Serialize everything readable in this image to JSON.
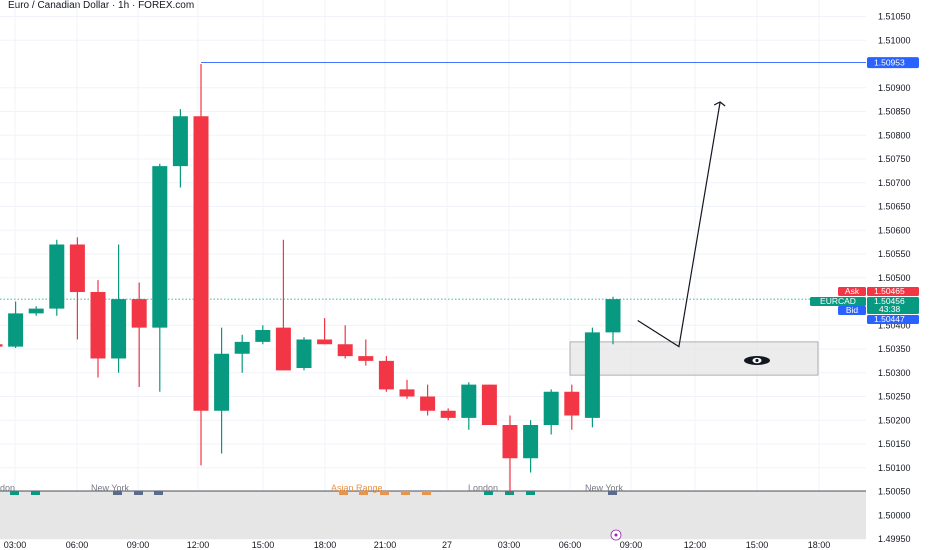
{
  "title": "Euro / Canadian Dollar · 1h · FOREX.com",
  "colors": {
    "up": "#089981",
    "down": "#f23645",
    "blue": "#2962ff",
    "grid": "#f0f3fa",
    "zone": "#e6e6e6",
    "session_grey": "#787b86",
    "session_orange": "#e8944a"
  },
  "chart_data": {
    "type": "candlestick",
    "symbol": "EURCAD",
    "y_ticks": [
      "1.51050",
      "1.51000",
      "1.50900",
      "1.50850",
      "1.50800",
      "1.50750",
      "1.50700",
      "1.50650",
      "1.50600",
      "1.50550",
      "1.50500",
      "1.50400",
      "1.50350",
      "1.50300",
      "1.50250",
      "1.50200",
      "1.50150",
      "1.50100",
      "1.50050",
      "1.50000",
      "1.49950"
    ],
    "y_range": [
      1.4995,
      1.5107
    ],
    "x_ticks": [
      "03:00",
      "06:00",
      "09:00",
      "12:00",
      "15:00",
      "18:00",
      "21:00",
      "27",
      "03:00",
      "06:00",
      "09:00",
      "12:00",
      "15:00",
      "18:00"
    ],
    "candles": [
      {
        "o": 1.5036,
        "h": 1.50365,
        "l": 1.50353,
        "c": 1.50355
      },
      {
        "o": 1.50355,
        "h": 1.5045,
        "l": 1.50352,
        "c": 1.50425
      },
      {
        "o": 1.50425,
        "h": 1.5044,
        "l": 1.5042,
        "c": 1.50435
      },
      {
        "o": 1.50435,
        "h": 1.5058,
        "l": 1.5042,
        "c": 1.5057
      },
      {
        "o": 1.5057,
        "h": 1.50585,
        "l": 1.5037,
        "c": 1.5047
      },
      {
        "o": 1.5047,
        "h": 1.50495,
        "l": 1.5029,
        "c": 1.5033
      },
      {
        "o": 1.5033,
        "h": 1.5057,
        "l": 1.503,
        "c": 1.50455
      },
      {
        "o": 1.50455,
        "h": 1.5049,
        "l": 1.5027,
        "c": 1.50395
      },
      {
        "o": 1.50395,
        "h": 1.5074,
        "l": 1.5026,
        "c": 1.50735
      },
      {
        "o": 1.50735,
        "h": 1.50855,
        "l": 1.5069,
        "c": 1.5084
      },
      {
        "o": 1.5084,
        "h": 1.5095,
        "l": 1.50105,
        "c": 1.5022
      },
      {
        "o": 1.5022,
        "h": 1.50395,
        "l": 1.5013,
        "c": 1.5034
      },
      {
        "o": 1.5034,
        "h": 1.5038,
        "l": 1.503,
        "c": 1.50365
      },
      {
        "o": 1.50365,
        "h": 1.504,
        "l": 1.5036,
        "c": 1.5039
      },
      {
        "o": 1.50395,
        "h": 1.5058,
        "l": 1.50305,
        "c": 1.50305
      },
      {
        "o": 1.5031,
        "h": 1.50375,
        "l": 1.50305,
        "c": 1.5037
      },
      {
        "o": 1.5037,
        "h": 1.50415,
        "l": 1.5036,
        "c": 1.5036
      },
      {
        "o": 1.5036,
        "h": 1.504,
        "l": 1.5033,
        "c": 1.50335
      },
      {
        "o": 1.50335,
        "h": 1.5037,
        "l": 1.50315,
        "c": 1.50325
      },
      {
        "o": 1.50325,
        "h": 1.50335,
        "l": 1.5026,
        "c": 1.50265
      },
      {
        "o": 1.50265,
        "h": 1.50285,
        "l": 1.50245,
        "c": 1.5025
      },
      {
        "o": 1.5025,
        "h": 1.50275,
        "l": 1.5021,
        "c": 1.5022
      },
      {
        "o": 1.5022,
        "h": 1.50225,
        "l": 1.502,
        "c": 1.50205
      },
      {
        "o": 1.50205,
        "h": 1.5028,
        "l": 1.5018,
        "c": 1.50275
      },
      {
        "o": 1.50275,
        "h": 1.50275,
        "l": 1.5019,
        "c": 1.5019
      },
      {
        "o": 1.5019,
        "h": 1.5021,
        "l": 1.50045,
        "c": 1.5012
      },
      {
        "o": 1.5012,
        "h": 1.502,
        "l": 1.5009,
        "c": 1.5019
      },
      {
        "o": 1.5019,
        "h": 1.50265,
        "l": 1.5017,
        "c": 1.5026
      },
      {
        "o": 1.5026,
        "h": 1.50275,
        "l": 1.5018,
        "c": 1.5021
      },
      {
        "o": 1.50205,
        "h": 1.50395,
        "l": 1.50185,
        "c": 1.50385
      },
      {
        "o": 1.50385,
        "h": 1.5046,
        "l": 1.5036,
        "c": 1.50455
      }
    ],
    "level_line": 1.50953,
    "zone": {
      "high": 1.50365,
      "low": 1.50295
    },
    "projection": [
      {
        "i": 31.2,
        "p": 1.5041
      },
      {
        "i": 33.2,
        "p": 1.50355
      },
      {
        "i": 35.2,
        "p": 1.5087
      }
    ]
  },
  "price_tags": {
    "level": "1.50953",
    "ask_label": "Ask",
    "ask_value": "1.50465",
    "symbol_label": "EURCAD",
    "last_value": "1.50456",
    "countdown": "43:38",
    "bid_label": "Bid",
    "bid_value": "1.50447"
  },
  "sessions": [
    {
      "label": "don",
      "x": 0,
      "color": "grey"
    },
    {
      "label": "New York",
      "x": 91,
      "color": "grey"
    },
    {
      "label": "Asian Range",
      "x": 331,
      "color": "orange"
    },
    {
      "label": "London",
      "x": 468,
      "color": "grey"
    },
    {
      "label": "New York",
      "x": 585,
      "color": "grey"
    }
  ]
}
